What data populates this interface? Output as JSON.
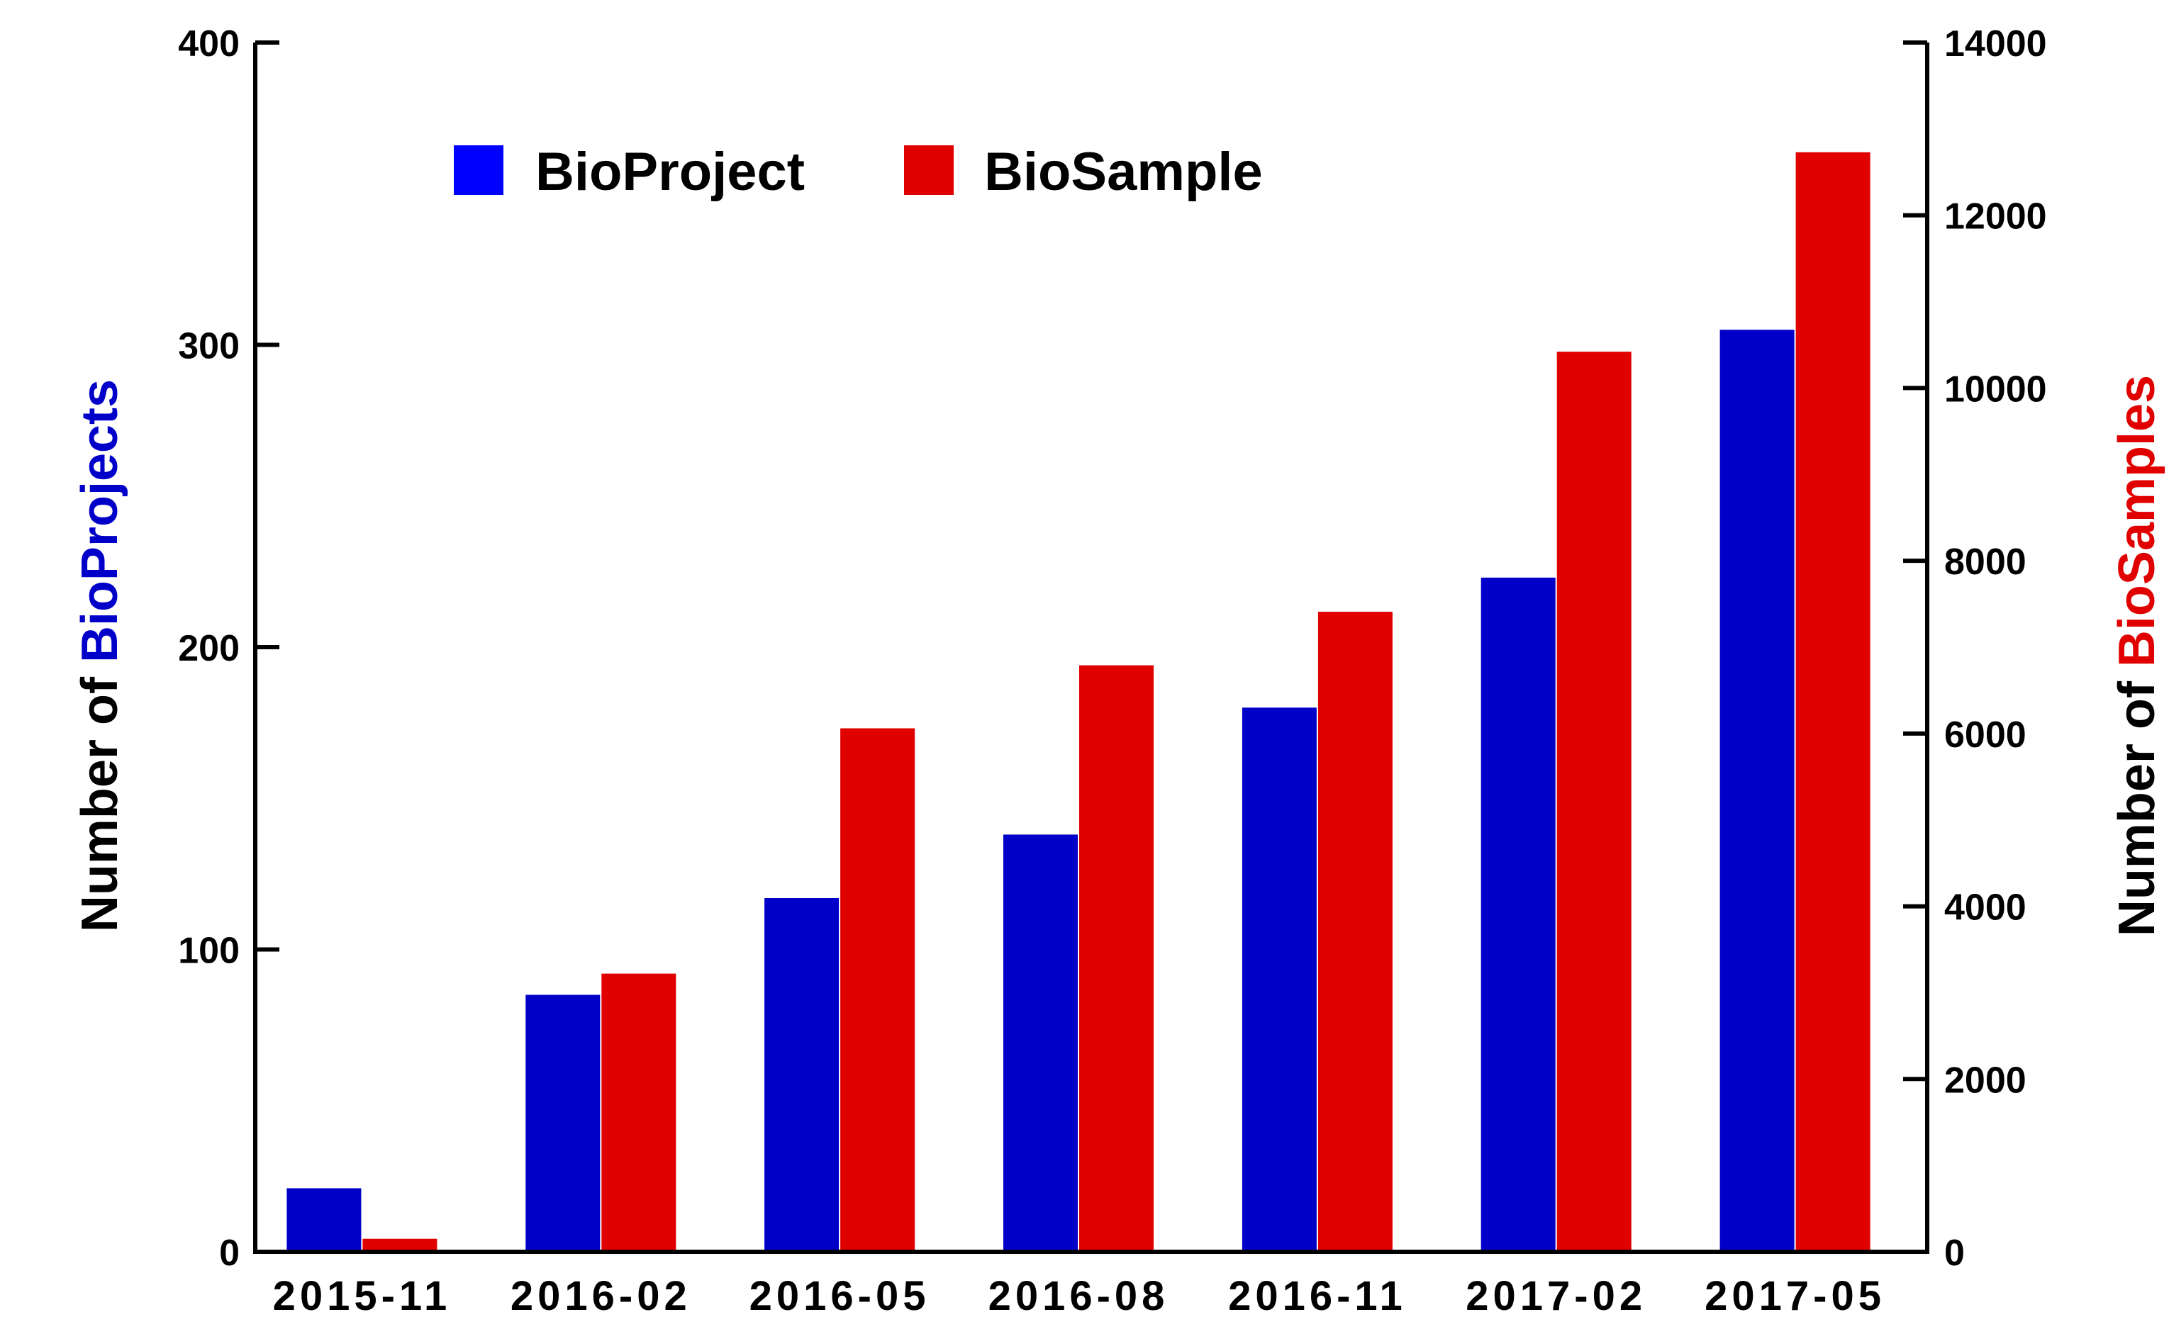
{
  "chart_data": {
    "type": "bar",
    "categories": [
      "2015-11",
      "2016-02",
      "2016-05",
      "2016-08",
      "2016-11",
      "2017-02",
      "2017-05"
    ],
    "series": [
      {
        "name": "BioProject",
        "axis": "left",
        "color": "#0000c8",
        "values": [
          21,
          85,
          117,
          138,
          180,
          223,
          305
        ]
      },
      {
        "name": "BioSample",
        "axis": "right",
        "color": "#e00000",
        "values": [
          150,
          3220,
          6060,
          6790,
          7410,
          10420,
          12730
        ]
      }
    ],
    "y_left": {
      "label_prefix": "Number of ",
      "label_highlight": "BioProjects",
      "highlight_color": "#0000c8",
      "ylim": [
        0,
        400
      ],
      "ticks": [
        0,
        100,
        200,
        300,
        400
      ]
    },
    "y_right": {
      "label_prefix": "Number of ",
      "label_highlight": "BioSamples",
      "highlight_color": "#e00000",
      "ylim": [
        0,
        14000
      ],
      "ticks": [
        0,
        2000,
        4000,
        6000,
        8000,
        10000,
        12000,
        14000
      ]
    },
    "legend": {
      "placement": "top-left",
      "items": [
        {
          "label": "BioProject",
          "color": "#0000ff"
        },
        {
          "label": "BioSample",
          "color": "#e00000"
        }
      ]
    },
    "grid": false
  }
}
